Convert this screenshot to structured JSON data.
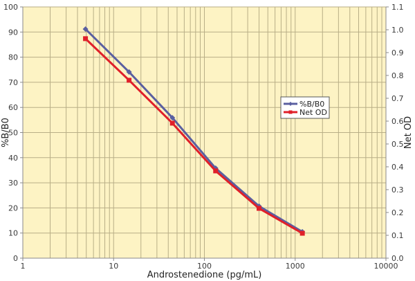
{
  "chart_data": {
    "type": "line",
    "title": "",
    "xlabel": "Androstenedione (pg/mL)",
    "ylabel": "%B/B0",
    "y2label": "Net OD",
    "xscale": "log",
    "xlim": [
      1,
      10000
    ],
    "ylim": [
      0,
      100
    ],
    "y2lim": [
      0.0,
      1.1
    ],
    "grid": true,
    "legend_position": "right-middle",
    "x_ticks": [
      "1",
      "10",
      "100",
      "1000",
      "10000"
    ],
    "y_ticks": [
      "0",
      "10",
      "20",
      "30",
      "40",
      "50",
      "60",
      "70",
      "80",
      "90",
      "100"
    ],
    "y2_ticks": [
      "0.0",
      "0.1",
      "0.2",
      "0.3",
      "0.4",
      "0.5",
      "0.6",
      "0.7",
      "0.8",
      "0.9",
      "1.0",
      "1.1"
    ],
    "x": [
      4.9,
      14.8,
      44.4,
      133,
      400,
      1200
    ],
    "series": [
      {
        "name": "%B/B0",
        "axis": "left",
        "color": "#5a5fa0",
        "marker": "diamond",
        "values": [
          91.2,
          74.1,
          55.9,
          35.8,
          20.7,
          10.5
        ]
      },
      {
        "name": "Net OD",
        "axis": "right",
        "color": "#e0202a",
        "marker": "square",
        "values": [
          0.961,
          0.779,
          0.591,
          0.382,
          0.218,
          0.109
        ]
      }
    ]
  },
  "style": {
    "plot_bg": "#fdf3c4",
    "grid_color": "#b8ae86",
    "axis_color": "#8a8a8a"
  }
}
